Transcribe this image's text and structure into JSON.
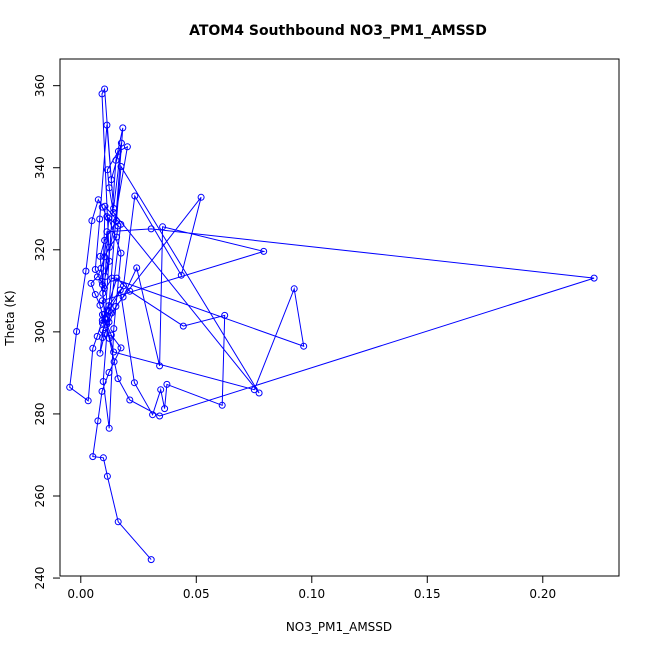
{
  "chart_data": {
    "type": "line",
    "title": "ATOM4 Southbound NO3_PM1_AMSSD",
    "xlabel": "NO3_PM1_AMSSD",
    "ylabel": "Theta (K)",
    "xlim": [
      -0.009,
      0.233
    ],
    "ylim": [
      240.5,
      366.5
    ],
    "xticks": [
      0.0,
      0.05,
      0.1,
      0.15,
      0.2
    ],
    "xtick_labels": [
      "0.00",
      "0.05",
      "0.10",
      "0.15",
      "0.20"
    ],
    "yticks": [
      240,
      260,
      280,
      300,
      320,
      340,
      360
    ],
    "ytick_labels": [
      "240",
      "260",
      "280",
      "300",
      "320",
      "340",
      "360"
    ],
    "grid": false,
    "markers": "open-circle",
    "color": "#0000ff",
    "series": [
      {
        "x": [
          0.0305,
          0.0162,
          0.0115,
          0.0098,
          0.0052,
          0.0074,
          0.0092,
          0.0122,
          0.0144,
          0.0174,
          0.0132,
          0.0112,
          0.0094,
          0.0083,
          0.0063,
          0.0044,
          0.0072,
          0.0088,
          0.0103,
          0.0124,
          0.0155,
          0.0161,
          0.0113,
          0.0093,
          0.0076,
          0.0048,
          0.0022,
          -0.0018,
          -0.0048,
          0.0032,
          0.0052,
          0.0071,
          0.0093,
          0.0122,
          0.0171,
          0.0232,
          0.0311,
          0.0346,
          0.0363,
          0.0373,
          0.0612,
          0.0623,
          0.0444,
          0.0212,
          0.0156,
          0.0094,
          0.0122,
          0.0185,
          0.0234,
          0.0435,
          0.0521,
          0.0152,
          0.0104,
          0.0083,
          0.0095,
          0.0133,
          0.0183,
          0.0242,
          0.0341,
          0.0354,
          0.0792,
          0.0093,
          0.0122,
          0.0173,
          0.0105,
          0.0095,
          0.0135,
          0.0965,
          0.0924,
          0.0751,
          0.0142,
          0.0104,
          0.0092,
          0.0113,
          0.0305,
          0.2222,
          0.0341,
          0.0212,
          0.0161,
          0.0123,
          0.0102,
          0.0094,
          0.0084,
          0.0103,
          0.0154,
          0.0174,
          0.0772,
          0.0141,
          0.0123,
          0.0115,
          0.0163,
          0.0202,
          0.0106,
          0.0124,
          0.0092,
          0.0103,
          0.0132,
          0.0176,
          0.0142,
          0.0113,
          0.0082,
          0.0063,
          0.0102,
          0.0121,
          0.0174,
          0.0143,
          0.0123,
          0.0097,
          0.0182,
          0.0152,
          0.0105,
          0.0094
        ],
        "y": [
          244.5,
          253.7,
          264.8,
          269.3,
          269.6,
          278.3,
          285.5,
          290.1,
          292.7,
          296.1,
          299.2,
          301.8,
          304.2,
          306.5,
          309.1,
          311.8,
          313.4,
          315.5,
          318.3,
          320.6,
          323.1,
          325.8,
          328.1,
          330.4,
          332.2,
          327.1,
          314.8,
          300.1,
          286.5,
          283.2,
          296.0,
          298.9,
          302.8,
          306.4,
          310.2,
          287.6,
          279.8,
          285.9,
          281.3,
          287.2,
          282.1,
          304.0,
          301.4,
          309.9,
          313.1,
          302.1,
          305.2,
          311.2,
          333.1,
          313.8,
          332.8,
          306.2,
          299.6,
          294.8,
          300.4,
          304.6,
          308.5,
          315.6,
          291.7,
          325.6,
          319.6,
          307.6,
          302.4,
          326.2,
          330.6,
          309.4,
          313.1,
          296.5,
          310.5,
          285.9,
          295.1,
          303.1,
          312.3,
          324.4,
          325.1,
          313.1,
          279.5,
          283.4,
          288.6,
          298.4,
          304.3,
          311.5,
          318.4,
          322.3,
          327.0,
          340.3,
          285.1,
          329.1,
          335.1,
          339.5,
          344.0,
          345.1,
          313.5,
          317.2,
          358.0,
          359.2,
          337.1,
          346.0,
          330.1,
          350.4,
          327.5,
          315.2,
          310.6,
          327.7,
          319.2,
          300.8,
          276.5,
          287.9,
          349.7,
          341.8,
          303.4,
          298.6
        ]
      }
    ]
  }
}
